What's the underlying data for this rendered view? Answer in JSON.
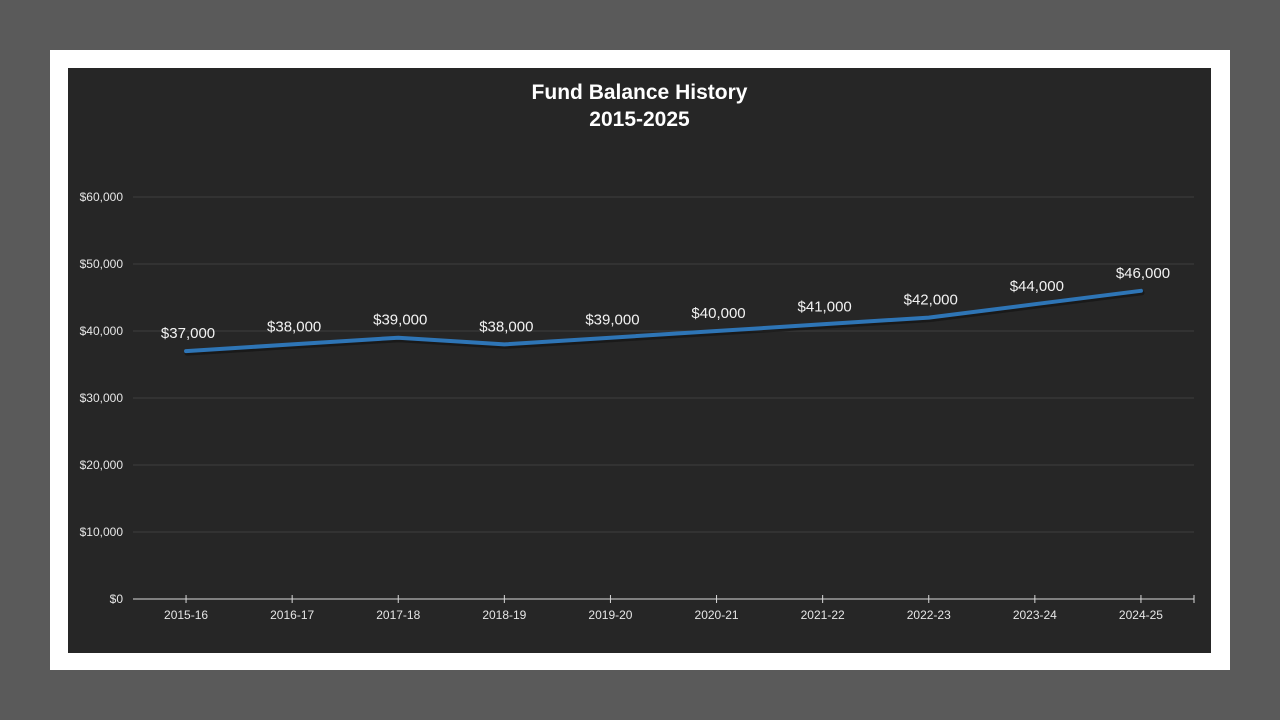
{
  "chart_data": {
    "type": "line",
    "title": "Fund Balance History",
    "subtitle": "2015-2025",
    "xlabel": "",
    "ylabel": "",
    "categories": [
      "2015-16",
      "2016-17",
      "2017-18",
      "2018-19",
      "2019-20",
      "2020-21",
      "2021-22",
      "2022-23",
      "2023-24",
      "2024-25"
    ],
    "series": [
      {
        "name": "Fund Balance",
        "values": [
          37000,
          38000,
          39000,
          38000,
          39000,
          40000,
          41000,
          42000,
          44000,
          46000
        ],
        "data_labels": [
          "$37,000",
          "$38,000",
          "$39,000",
          "$38,000",
          "$39,000",
          "$40,000",
          "$41,000",
          "$42,000",
          "$44,000",
          "$46,000"
        ],
        "color": "#2e75b6"
      }
    ],
    "ylim": [
      0,
      60000
    ],
    "yticks": [
      0,
      10000,
      20000,
      30000,
      40000,
      50000,
      60000
    ],
    "ytick_labels": [
      "$0",
      "$10,000",
      "$20,000",
      "$30,000",
      "$40,000",
      "$50,000",
      "$60,000"
    ],
    "grid": true,
    "legend": "none"
  },
  "colors": {
    "page_background": "#5a5a5a",
    "frame": "#ffffff",
    "chart_background": "#262626",
    "gridline": "#3d3d3d",
    "axis": "#d9d9d9",
    "text": "#ffffff"
  }
}
